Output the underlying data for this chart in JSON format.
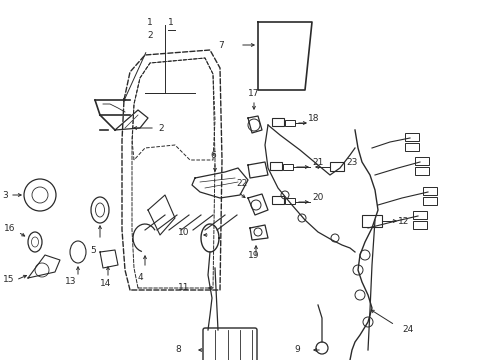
{
  "background_color": "#ffffff",
  "line_color": "#2a2a2a",
  "figsize": [
    4.89,
    3.6
  ],
  "dpi": 100
}
